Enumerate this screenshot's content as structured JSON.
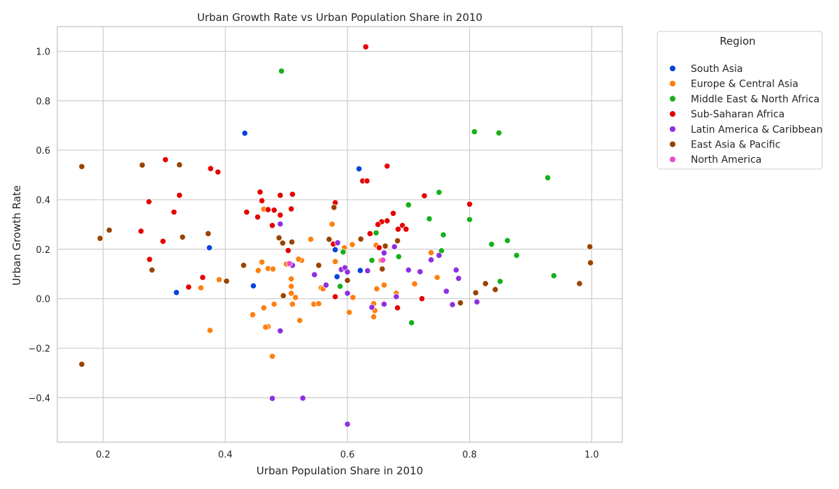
{
  "chart_data": {
    "type": "scatter",
    "title": "Urban Growth Rate vs Urban Population Share in 2010",
    "xlabel": "Urban Population Share in 2010",
    "ylabel": "Urban Growth Rate",
    "xlim": [
      0.125,
      1.05
    ],
    "ylim": [
      -0.58,
      1.1
    ],
    "xticks": [
      0.2,
      0.4,
      0.6,
      0.8,
      1.0
    ],
    "xtick_labels": [
      "0.2",
      "0.4",
      "0.6",
      "0.8",
      "1.0"
    ],
    "yticks": [
      -0.4,
      -0.2,
      0.0,
      0.2,
      0.4,
      0.6,
      0.8,
      1.0
    ],
    "ytick_labels": [
      "−0.4",
      "−0.2",
      "0.0",
      "0.2",
      "0.4",
      "0.6",
      "0.8",
      "1.0"
    ],
    "grid": true,
    "legend": {
      "title": "Region",
      "placement": "outside-right"
    },
    "series": [
      {
        "name": "South Asia",
        "color": "#0343df",
        "points": [
          [
            0.432,
            0.669
          ],
          [
            0.619,
            0.525
          ],
          [
            0.374,
            0.206
          ],
          [
            0.58,
            0.198
          ],
          [
            0.32,
            0.025
          ],
          [
            0.446,
            0.052
          ],
          [
            0.583,
            0.089
          ],
          [
            0.621,
            0.114
          ]
        ]
      },
      {
        "name": "Europe & Central Asia",
        "color": "#ff7f0e",
        "points": [
          [
            0.463,
            0.362
          ],
          [
            0.575,
            0.301
          ],
          [
            0.54,
            0.24
          ],
          [
            0.608,
            0.219
          ],
          [
            0.647,
            0.216
          ],
          [
            0.737,
            0.186
          ],
          [
            0.595,
            0.206
          ],
          [
            0.58,
            0.15
          ],
          [
            0.525,
            0.155
          ],
          [
            0.52,
            0.16
          ],
          [
            0.46,
            0.148
          ],
          [
            0.454,
            0.114
          ],
          [
            0.47,
            0.122
          ],
          [
            0.478,
            0.12
          ],
          [
            0.5,
            0.14
          ],
          [
            0.36,
            0.044
          ],
          [
            0.39,
            0.077
          ],
          [
            0.508,
            0.08
          ],
          [
            0.508,
            0.05
          ],
          [
            0.557,
            0.044
          ],
          [
            0.508,
            0.022
          ],
          [
            0.515,
            0.005
          ],
          [
            0.56,
            0.04
          ],
          [
            0.609,
            0.005
          ],
          [
            0.648,
            0.04
          ],
          [
            0.66,
            0.055
          ],
          [
            0.68,
            0.022
          ],
          [
            0.71,
            0.06
          ],
          [
            0.747,
            0.086
          ],
          [
            0.445,
            -0.065
          ],
          [
            0.463,
            -0.037
          ],
          [
            0.48,
            -0.022
          ],
          [
            0.51,
            -0.022
          ],
          [
            0.545,
            -0.022
          ],
          [
            0.553,
            -0.02
          ],
          [
            0.643,
            -0.02
          ],
          [
            0.645,
            -0.048
          ],
          [
            0.643,
            -0.073
          ],
          [
            0.603,
            -0.055
          ],
          [
            0.47,
            -0.113
          ],
          [
            0.466,
            -0.115
          ],
          [
            0.522,
            -0.088
          ],
          [
            0.375,
            -0.128
          ],
          [
            0.477,
            -0.233
          ],
          [
            0.655,
            0.155
          ]
        ]
      },
      {
        "name": "Middle East & North Africa",
        "color": "#15b01a",
        "points": [
          [
            0.492,
            0.92
          ],
          [
            0.808,
            0.675
          ],
          [
            0.848,
            0.67
          ],
          [
            0.928,
            0.489
          ],
          [
            0.75,
            0.43
          ],
          [
            0.7,
            0.379
          ],
          [
            0.734,
            0.323
          ],
          [
            0.8,
            0.32
          ],
          [
            0.757,
            0.258
          ],
          [
            0.647,
            0.266
          ],
          [
            0.836,
            0.22
          ],
          [
            0.862,
            0.235
          ],
          [
            0.754,
            0.194
          ],
          [
            0.877,
            0.175
          ],
          [
            0.684,
            0.17
          ],
          [
            0.64,
            0.155
          ],
          [
            0.593,
            0.189
          ],
          [
            0.588,
            0.05
          ],
          [
            0.85,
            0.07
          ],
          [
            0.938,
            0.093
          ],
          [
            0.705,
            -0.097
          ]
        ]
      },
      {
        "name": "Sub-Saharan Africa",
        "color": "#e50000",
        "points": [
          [
            0.63,
            1.018
          ],
          [
            0.302,
            0.562
          ],
          [
            0.665,
            0.536
          ],
          [
            0.376,
            0.526
          ],
          [
            0.388,
            0.512
          ],
          [
            0.625,
            0.476
          ],
          [
            0.632,
            0.476
          ],
          [
            0.457,
            0.431
          ],
          [
            0.51,
            0.422
          ],
          [
            0.49,
            0.418
          ],
          [
            0.325,
            0.418
          ],
          [
            0.726,
            0.416
          ],
          [
            0.275,
            0.392
          ],
          [
            0.46,
            0.396
          ],
          [
            0.58,
            0.388
          ],
          [
            0.8,
            0.382
          ],
          [
            0.435,
            0.35
          ],
          [
            0.316,
            0.35
          ],
          [
            0.47,
            0.36
          ],
          [
            0.48,
            0.358
          ],
          [
            0.508,
            0.363
          ],
          [
            0.453,
            0.33
          ],
          [
            0.49,
            0.338
          ],
          [
            0.675,
            0.345
          ],
          [
            0.665,
            0.315
          ],
          [
            0.656,
            0.311
          ],
          [
            0.65,
            0.3
          ],
          [
            0.69,
            0.296
          ],
          [
            0.477,
            0.296
          ],
          [
            0.683,
            0.281
          ],
          [
            0.696,
            0.281
          ],
          [
            0.262,
            0.273
          ],
          [
            0.637,
            0.263
          ],
          [
            0.298,
            0.232
          ],
          [
            0.577,
            0.221
          ],
          [
            0.652,
            0.206
          ],
          [
            0.503,
            0.195
          ],
          [
            0.276,
            0.159
          ],
          [
            0.363,
            0.086
          ],
          [
            0.34,
            0.047
          ],
          [
            0.58,
            0.008
          ],
          [
            0.722,
            0.0
          ],
          [
            0.682,
            -0.037
          ]
        ]
      },
      {
        "name": "Latin America & Caribbean",
        "color": "#8f2fe0",
        "points": [
          [
            0.49,
            0.302
          ],
          [
            0.584,
            0.226
          ],
          [
            0.677,
            0.21
          ],
          [
            0.66,
            0.185
          ],
          [
            0.75,
            0.175
          ],
          [
            0.737,
            0.157
          ],
          [
            0.508,
            0.14
          ],
          [
            0.51,
            0.135
          ],
          [
            0.59,
            0.118
          ],
          [
            0.596,
            0.125
          ],
          [
            0.6,
            0.108
          ],
          [
            0.633,
            0.113
          ],
          [
            0.7,
            0.116
          ],
          [
            0.719,
            0.109
          ],
          [
            0.778,
            0.116
          ],
          [
            0.546,
            0.097
          ],
          [
            0.782,
            0.082
          ],
          [
            0.565,
            0.055
          ],
          [
            0.6,
            0.022
          ],
          [
            0.762,
            0.03
          ],
          [
            0.68,
            0.008
          ],
          [
            0.64,
            -0.035
          ],
          [
            0.66,
            -0.022
          ],
          [
            0.772,
            -0.024
          ],
          [
            0.812,
            -0.013
          ],
          [
            0.49,
            -0.13
          ],
          [
            0.477,
            -0.403
          ],
          [
            0.527,
            -0.402
          ],
          [
            0.6,
            -0.507
          ]
        ]
      },
      {
        "name": "East Asia & Pacific",
        "color": "#9a4300",
        "points": [
          [
            0.165,
            0.534
          ],
          [
            0.264,
            0.54
          ],
          [
            0.325,
            0.541
          ],
          [
            0.578,
            0.369
          ],
          [
            0.21,
            0.277
          ],
          [
            0.195,
            0.244
          ],
          [
            0.33,
            0.249
          ],
          [
            0.372,
            0.263
          ],
          [
            0.622,
            0.241
          ],
          [
            0.57,
            0.24
          ],
          [
            0.488,
            0.246
          ],
          [
            0.494,
            0.225
          ],
          [
            0.509,
            0.229
          ],
          [
            0.682,
            0.234
          ],
          [
            0.662,
            0.213
          ],
          [
            0.997,
            0.21
          ],
          [
            0.28,
            0.116
          ],
          [
            0.43,
            0.135
          ],
          [
            0.553,
            0.135
          ],
          [
            0.657,
            0.12
          ],
          [
            0.402,
            0.071
          ],
          [
            0.6,
            0.074
          ],
          [
            0.998,
            0.145
          ],
          [
            0.98,
            0.061
          ],
          [
            0.826,
            0.061
          ],
          [
            0.842,
            0.037
          ],
          [
            0.81,
            0.024
          ],
          [
            0.495,
            0.012
          ],
          [
            0.785,
            -0.017
          ],
          [
            0.165,
            -0.265
          ]
        ]
      },
      {
        "name": "North America",
        "color": "#e84bcc",
        "points": [
          [
            0.658,
            0.156
          ],
          [
            0.505,
            0.142
          ]
        ]
      }
    ]
  }
}
